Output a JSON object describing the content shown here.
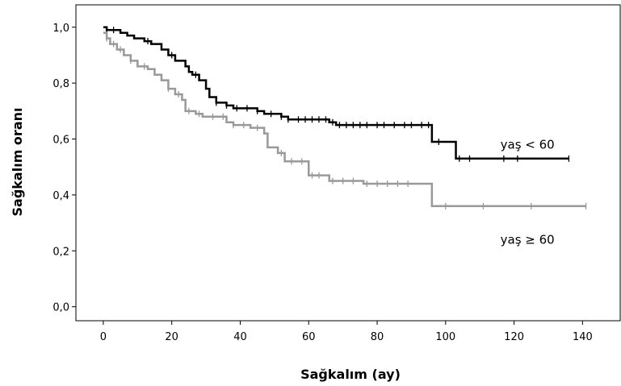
{
  "chart_data": {
    "type": "line",
    "subtype": "kaplan-meier",
    "xlabel": "Sağkalım (ay)",
    "ylabel": "Sağkalım oranı",
    "xlim": [
      -8,
      151
    ],
    "ylim": [
      -0.05,
      1.08
    ],
    "xticks": [
      0,
      20,
      40,
      60,
      80,
      100,
      120,
      140
    ],
    "xtick_labels": [
      "0",
      "20",
      "40",
      "60",
      "80",
      "100",
      "120",
      "140"
    ],
    "yticks": [
      0.0,
      0.2,
      0.4,
      0.6,
      0.8,
      1.0
    ],
    "ytick_labels": [
      "0,0",
      "0,2",
      "0,4",
      "0,6",
      "0,8",
      "1,0"
    ],
    "grid": false,
    "series": [
      {
        "name": "yaş <  60",
        "color": "#000000",
        "steps": [
          [
            0,
            1.0
          ],
          [
            1,
            0.99
          ],
          [
            5,
            0.98
          ],
          [
            7,
            0.97
          ],
          [
            9,
            0.96
          ],
          [
            12,
            0.95
          ],
          [
            14,
            0.94
          ],
          [
            17,
            0.92
          ],
          [
            19,
            0.9
          ],
          [
            21,
            0.88
          ],
          [
            24,
            0.86
          ],
          [
            25,
            0.84
          ],
          [
            26,
            0.83
          ],
          [
            28,
            0.81
          ],
          [
            30,
            0.78
          ],
          [
            31,
            0.75
          ],
          [
            33,
            0.73
          ],
          [
            36,
            0.72
          ],
          [
            38,
            0.71
          ],
          [
            45,
            0.7
          ],
          [
            47,
            0.69
          ],
          [
            52,
            0.68
          ],
          [
            54,
            0.67
          ],
          [
            66,
            0.66
          ],
          [
            68,
            0.65
          ],
          [
            96,
            0.59
          ],
          [
            103,
            0.53
          ],
          [
            136,
            0.53
          ]
        ],
        "censored": [
          1,
          3,
          13,
          20,
          27,
          33,
          36,
          39,
          42,
          45,
          49,
          52,
          54,
          57,
          59,
          61,
          63,
          65,
          67,
          69,
          71,
          73,
          75,
          77,
          80,
          82,
          85,
          88,
          90,
          93,
          95,
          98,
          104,
          107,
          117,
          121,
          136
        ]
      },
      {
        "name": "yaş ≥ 60",
        "color": "#999999",
        "steps": [
          [
            0,
            0.98
          ],
          [
            1,
            0.96
          ],
          [
            2,
            0.94
          ],
          [
            4,
            0.92
          ],
          [
            6,
            0.9
          ],
          [
            8,
            0.88
          ],
          [
            10,
            0.86
          ],
          [
            13,
            0.85
          ],
          [
            15,
            0.83
          ],
          [
            17,
            0.81
          ],
          [
            19,
            0.78
          ],
          [
            21,
            0.76
          ],
          [
            23,
            0.74
          ],
          [
            24,
            0.7
          ],
          [
            27,
            0.69
          ],
          [
            29,
            0.68
          ],
          [
            36,
            0.66
          ],
          [
            38,
            0.65
          ],
          [
            43,
            0.64
          ],
          [
            47,
            0.62
          ],
          [
            48,
            0.57
          ],
          [
            51,
            0.55
          ],
          [
            53,
            0.52
          ],
          [
            60,
            0.47
          ],
          [
            66,
            0.45
          ],
          [
            76,
            0.44
          ],
          [
            96,
            0.36
          ],
          [
            141,
            0.36
          ]
        ],
        "censored": [
          1,
          3,
          5,
          8,
          12,
          19,
          22,
          25,
          28,
          32,
          35,
          38,
          41,
          45,
          52,
          55,
          58,
          61,
          63,
          67,
          70,
          73,
          77,
          80,
          83,
          86,
          89,
          100,
          111,
          125,
          141
        ]
      }
    ],
    "annotations": [
      {
        "text": "yaş <  60",
        "x": 116,
        "y": 0.565
      },
      {
        "text": "yaş ≥ 60",
        "x": 116,
        "y": 0.225
      }
    ]
  }
}
